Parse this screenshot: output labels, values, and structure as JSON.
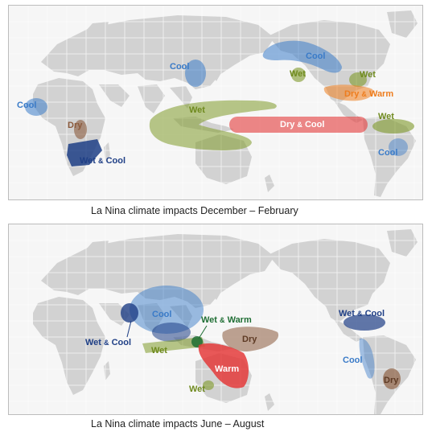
{
  "panels": [
    {
      "caption": "La Nina climate impacts December – February",
      "labels": {
        "cool_east_asia": "Cool",
        "cool_west_africa": "Cool",
        "dry_east_africa": "Dry",
        "wet_cool_south_africa": [
          "Wet",
          "&",
          "Cool"
        ],
        "wet_maritime": "Wet",
        "cool_alaska_canada": "Cool",
        "wet_pacific_nw": "Wet",
        "wet_ohio_valley": "Wet",
        "dry_warm_southern_us": [
          "Dry",
          "&",
          "Warm"
        ],
        "dry_cool_equatorial_pacific": [
          "Dry",
          "&",
          "Cool"
        ],
        "wet_northern_south_america": "Wet",
        "cool_southeast_brazil": "Cool"
      }
    },
    {
      "caption": "La Nina climate impacts June – August",
      "labels": {
        "cool_south_asia": "Cool",
        "wet_cool_india": [
          "Wet",
          "&",
          "Cool"
        ],
        "wet_warm_indonesia": [
          "Wet",
          "&",
          "Warm"
        ],
        "wet_indian_ocean": "Wet",
        "dry_central_pacific": "Dry",
        "warm_australia": "Warm",
        "wet_southern_australia": "Wet",
        "wet_cool_central_america": [
          "Wet",
          "&",
          "Cool"
        ],
        "cool_western_south_america": "Cool",
        "dry_argentina": "Dry"
      }
    }
  ],
  "colors": {
    "cool": "#3a7bc8",
    "wet": "#7f9a2a",
    "dry": "#8b5a3c",
    "warm": "#e43b3b",
    "dry_warm": "#ee7d1e",
    "wet_cool": "#1f3f86",
    "wet_warm": "#1f6e34",
    "land": "#d2d2d2",
    "grid": "#ffffff"
  }
}
